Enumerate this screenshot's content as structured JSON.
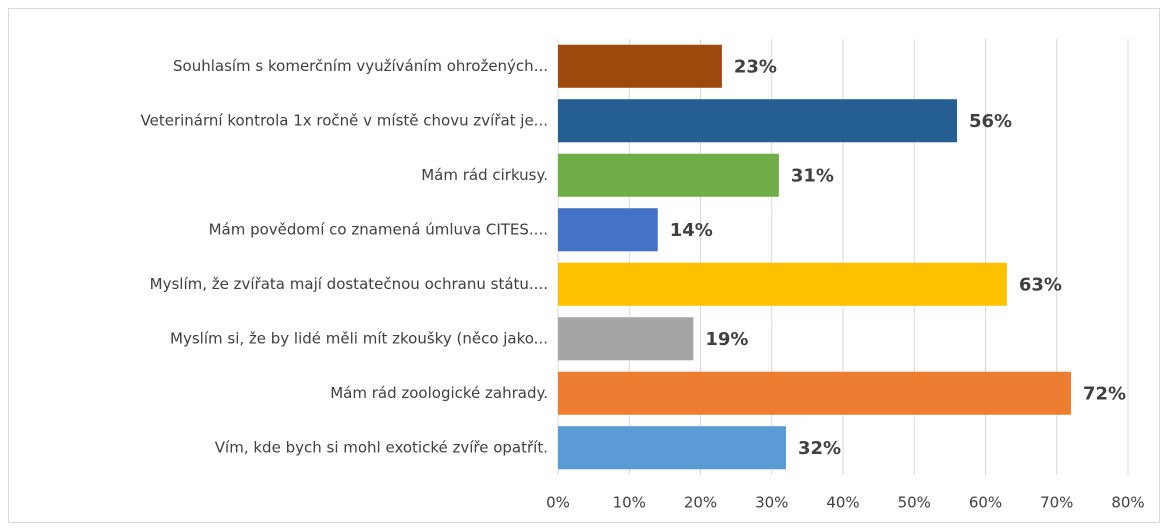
{
  "chart_data": {
    "type": "bar",
    "orientation": "horizontal",
    "categories": [
      "Souhlasím s komerčním využíváním ohrožených...",
      "Veterinární kontrola 1x ročně v místě chovu zvířat je...",
      "Mám rád cirkusy.",
      "Mám povědomí co znamená úmluva CITES....",
      "Myslím, že zvířata mají dostatečnou ochranu státu....",
      "Myslím si, že by lidé měli mít zkoušky (něco jako...",
      "Mám rád zoologické zahrady.",
      "Vím, kde bych si mohl exotické zvíře opatřít."
    ],
    "values": [
      23,
      56,
      31,
      14,
      63,
      19,
      72,
      32
    ],
    "value_labels": [
      "23%",
      "56%",
      "31%",
      "14%",
      "63%",
      "19%",
      "72%",
      "32%"
    ],
    "colors": [
      "#9e480e",
      "#255e91",
      "#70ad47",
      "#4472c4",
      "#ffc000",
      "#a5a5a5",
      "#ed7d31",
      "#5b9bd5"
    ],
    "xlim": [
      0,
      80
    ],
    "xticks": [
      {
        "value": 0,
        "label": "0%"
      },
      {
        "value": 10,
        "label": "10%"
      },
      {
        "value": 20,
        "label": "20%"
      },
      {
        "value": 30,
        "label": "30%"
      },
      {
        "value": 40,
        "label": "40%"
      },
      {
        "value": 50,
        "label": "50%"
      },
      {
        "value": 60,
        "label": "60%"
      },
      {
        "value": 70,
        "label": "70%"
      },
      {
        "value": 80,
        "label": "80%"
      }
    ],
    "grid": true
  }
}
